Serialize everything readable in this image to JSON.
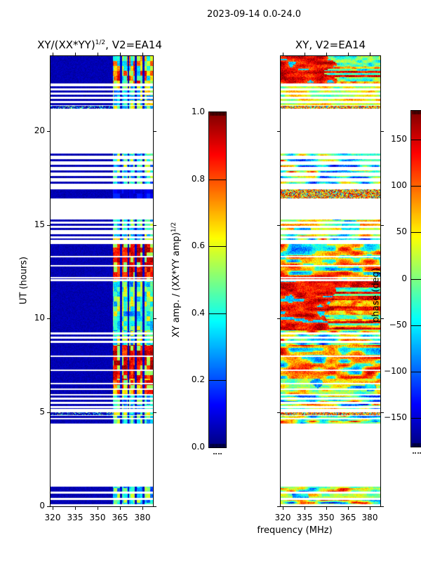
{
  "figure": {
    "title": "2023-09-14 0.0-24.0"
  },
  "left_plot": {
    "title_base": "XY/(XX*YY)",
    "title_sup": "1/2",
    "title_rest": ", V2=EA14"
  },
  "right_plot": {
    "title": "XY, V2=EA14"
  },
  "axes": {
    "ylabel": "UT (hours)",
    "xlabel": "frequency (MHz)",
    "x_ticks": [
      "320",
      "335",
      "350",
      "365",
      "380"
    ],
    "x_tick_values": [
      320,
      335,
      350,
      365,
      380
    ],
    "y_ticks": [
      "0",
      "5",
      "10",
      "15",
      "20"
    ],
    "y_tick_values": [
      0,
      5,
      10,
      15,
      20
    ],
    "xlim": [
      318.6,
      387.0
    ],
    "ylim": [
      0,
      24
    ]
  },
  "colorbar_left": {
    "label_base": "XY amp. / (XX*YY amp)",
    "label_sup": "1/2",
    "ticks": [
      "0.0",
      "0.2",
      "0.4",
      "0.6",
      "0.8",
      "1.0"
    ],
    "tick_values": [
      0,
      0.2,
      0.4,
      0.6,
      0.8,
      1.0
    ],
    "vmin": 0,
    "vmax": 1
  },
  "colorbar_right": {
    "label": "phase (deg)",
    "ticks": [
      "150",
      "100",
      "50",
      "0",
      "−50",
      "−100",
      "−150"
    ],
    "tick_values": [
      150,
      100,
      50,
      0,
      -50,
      -100,
      -150
    ],
    "vmin": -181,
    "vmax": 181
  },
  "chart_data": [
    {
      "type": "heatmap",
      "title": "XY/(XX*YY)^(1/2), V2=EA14",
      "xlabel": "frequency (MHz)",
      "ylabel": "UT (hours)",
      "xlim": [
        318.6,
        387.0
      ],
      "ylim": [
        0,
        24
      ],
      "x_ticks": [
        320,
        335,
        350,
        365,
        380
      ],
      "y_ticks": [
        0,
        5,
        10,
        15,
        20
      ],
      "colormap": "jet",
      "colorbar": {
        "label": "XY amp. / (XX*YY amp)^(1/2)",
        "range": [
          0,
          1
        ],
        "ticks": [
          0,
          0.2,
          0.4,
          0.6,
          0.8,
          1.0
        ]
      },
      "band_mhz": [
        360.3,
        387.0
      ],
      "band_column_edges_mhz": [
        365.6,
        370.6,
        375.6,
        380.6
      ],
      "segments": [
        {
          "t0": 0.1,
          "t1": 0.35,
          "kind": "row",
          "band": "cyan"
        },
        {
          "t0": 0.45,
          "t1": 0.68,
          "kind": "row",
          "band": "cyan"
        },
        {
          "t0": 0.78,
          "t1": 1.05,
          "kind": "row",
          "band": "cyan"
        },
        {
          "t0": 4.4,
          "t1": 4.62,
          "kind": "row",
          "band": "cyan"
        },
        {
          "t0": 4.7,
          "t1": 4.84,
          "kind": "row",
          "band": "cyan"
        },
        {
          "t0": 4.86,
          "t1": 5.02,
          "kind": "speckle",
          "band": "mid"
        },
        {
          "t0": 5.2,
          "t1": 5.9,
          "kind": "rows",
          "band": "cyan"
        },
        {
          "t0": 5.9,
          "t1": 6.8,
          "kind": "rows2",
          "band": "orange"
        },
        {
          "t0": 6.8,
          "t1": 8.6,
          "kind": "blockrows",
          "band": "red"
        },
        {
          "t0": 8.6,
          "t1": 9.4,
          "kind": "rows",
          "band": "mid"
        },
        {
          "t0": 9.4,
          "t1": 12.0,
          "kind": "block",
          "band": "cyan2"
        },
        {
          "t0": 12.1,
          "t1": 14.0,
          "kind": "blockrows",
          "band": "red"
        },
        {
          "t0": 14.2,
          "t1": 14.5,
          "kind": "rows",
          "band": "mid"
        },
        {
          "t0": 14.7,
          "t1": 15.3,
          "kind": "rows",
          "band": "cyan"
        },
        {
          "t0": 16.4,
          "t1": 16.9,
          "kind": "block",
          "band": "faint"
        },
        {
          "t0": 17.0,
          "t1": 18.8,
          "kind": "sparse",
          "band": "cyan"
        },
        {
          "t0": 21.2,
          "t1": 21.33,
          "kind": "speckle",
          "band": "mid"
        },
        {
          "t0": 21.4,
          "t1": 22.4,
          "kind": "rows",
          "band": "mid"
        },
        {
          "t0": 22.55,
          "t1": 24.0,
          "kind": "block",
          "band": "mottle"
        }
      ]
    },
    {
      "type": "heatmap",
      "title": "XY, V2=EA14",
      "xlabel": "frequency (MHz)",
      "ylabel": "UT (hours)",
      "xlim": [
        318.6,
        387.0
      ],
      "ylim": [
        0,
        24
      ],
      "x_ticks": [
        320,
        335,
        350,
        365,
        380
      ],
      "y_ticks": [
        0,
        5,
        10,
        15,
        20
      ],
      "colormap": "jet",
      "colorbar": {
        "label": "phase (deg)",
        "range": [
          -181,
          181
        ],
        "ticks": [
          150,
          100,
          50,
          0,
          -50,
          -100,
          -150
        ]
      },
      "segments": [
        {
          "t0": 0.1,
          "t1": 0.35,
          "kind": "row",
          "phase": "mixed"
        },
        {
          "t0": 0.45,
          "t1": 0.68,
          "kind": "row",
          "phase": "warm"
        },
        {
          "t0": 0.78,
          "t1": 1.05,
          "kind": "row",
          "phase": "mixed"
        },
        {
          "t0": 4.4,
          "t1": 4.62,
          "kind": "row",
          "phase": "mixed"
        },
        {
          "t0": 4.7,
          "t1": 4.84,
          "kind": "row",
          "phase": "mixed"
        },
        {
          "t0": 4.86,
          "t1": 5.02,
          "kind": "speckle",
          "phase": "speckle"
        },
        {
          "t0": 5.2,
          "t1": 5.9,
          "kind": "rows",
          "phase": "mixed"
        },
        {
          "t0": 5.9,
          "t1": 6.8,
          "kind": "rows2",
          "phase": "warm"
        },
        {
          "t0": 6.8,
          "t1": 8.6,
          "kind": "blockrows",
          "phase": "mixedred"
        },
        {
          "t0": 8.6,
          "t1": 9.4,
          "kind": "rows",
          "phase": "mixed"
        },
        {
          "t0": 9.4,
          "t1": 12.0,
          "kind": "block",
          "phase": "redleft"
        },
        {
          "t0": 12.1,
          "t1": 14.0,
          "kind": "blockrows",
          "phase": "mixedred"
        },
        {
          "t0": 14.2,
          "t1": 14.5,
          "kind": "rows",
          "phase": "mixed"
        },
        {
          "t0": 14.7,
          "t1": 15.3,
          "kind": "rows",
          "phase": "warm"
        },
        {
          "t0": 16.4,
          "t1": 16.9,
          "kind": "block",
          "phase": "speckle"
        },
        {
          "t0": 17.0,
          "t1": 18.8,
          "kind": "sparse",
          "phase": "mixed"
        },
        {
          "t0": 21.2,
          "t1": 21.33,
          "kind": "speckle",
          "phase": "speckle"
        },
        {
          "t0": 21.4,
          "t1": 22.4,
          "kind": "rows",
          "phase": "warm"
        },
        {
          "t0": 22.55,
          "t1": 24.0,
          "kind": "block",
          "phase": "redleft"
        }
      ]
    }
  ]
}
